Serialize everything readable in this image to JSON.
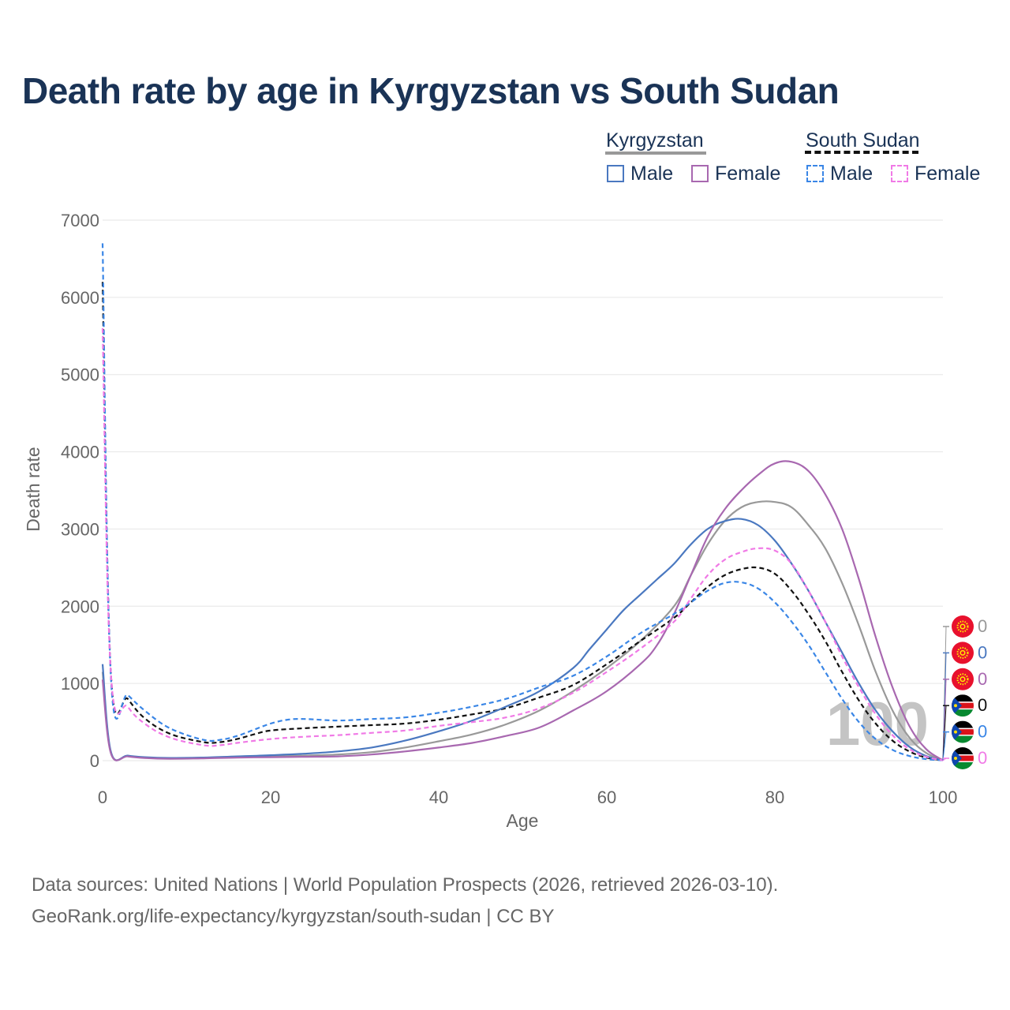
{
  "title": "Death rate by age in Kyrgyzstan vs South Sudan",
  "legend": {
    "kyrgyzstan": {
      "title": "Kyrgyzstan",
      "male": "Male",
      "female": "Female"
    },
    "south_sudan": {
      "title": "South Sudan",
      "male": "Male",
      "female": "Female"
    }
  },
  "footer": {
    "line1": "Data sources: United Nations | World Population Prospects (2026, retrieved 2026-03-10).",
    "line2": "GeoRank.org/life-expectancy/kyrgyzstan/south-sudan | CC BY"
  },
  "colors": {
    "kg_total": "#999999",
    "kg_male": "#4a78c0",
    "kg_female": "#a868b0",
    "ss_total": "#111111",
    "ss_male": "#3a86e6",
    "ss_female": "#f07ae6",
    "title": "#1a3356",
    "grid": "#e6e6e6",
    "text": "#666666"
  },
  "watermark": "100",
  "chart_data": {
    "type": "line",
    "title": "Death rate by age in Kyrgyzstan vs South Sudan",
    "xlabel": "Age",
    "ylabel": "Death rate",
    "xlim": [
      0,
      100
    ],
    "ylim": [
      0,
      7000
    ],
    "x_ticks": [
      0,
      20,
      40,
      60,
      80,
      100
    ],
    "y_ticks": [
      0,
      1000,
      2000,
      3000,
      4000,
      5000,
      6000,
      7000
    ],
    "grid": true,
    "legend_position": "top-right",
    "series": [
      {
        "id": "kg_total",
        "name": "Kyrgyzstan",
        "style": "solid",
        "end_value": "0",
        "points": [
          [
            0,
            1150
          ],
          [
            1,
            100
          ],
          [
            3,
            60
          ],
          [
            5,
            40
          ],
          [
            8,
            30
          ],
          [
            12,
            35
          ],
          [
            16,
            45
          ],
          [
            20,
            55
          ],
          [
            24,
            65
          ],
          [
            28,
            80
          ],
          [
            32,
            110
          ],
          [
            36,
            170
          ],
          [
            40,
            250
          ],
          [
            44,
            340
          ],
          [
            48,
            470
          ],
          [
            52,
            650
          ],
          [
            56,
            900
          ],
          [
            60,
            1200
          ],
          [
            64,
            1550
          ],
          [
            68,
            2000
          ],
          [
            70,
            2400
          ],
          [
            72,
            2800
          ],
          [
            74,
            3100
          ],
          [
            76,
            3280
          ],
          [
            78,
            3350
          ],
          [
            80,
            3350
          ],
          [
            82,
            3280
          ],
          [
            84,
            3050
          ],
          [
            86,
            2750
          ],
          [
            88,
            2300
          ],
          [
            90,
            1750
          ],
          [
            92,
            1150
          ],
          [
            94,
            650
          ],
          [
            96,
            300
          ],
          [
            98,
            100
          ],
          [
            100,
            5
          ]
        ]
      },
      {
        "id": "kg_male",
        "name": "Kyrgyzstan Male",
        "style": "solid",
        "end_value": "0",
        "points": [
          [
            0,
            1250
          ],
          [
            1,
            110
          ],
          [
            3,
            65
          ],
          [
            5,
            45
          ],
          [
            8,
            35
          ],
          [
            12,
            40
          ],
          [
            16,
            55
          ],
          [
            20,
            70
          ],
          [
            24,
            90
          ],
          [
            28,
            120
          ],
          [
            32,
            170
          ],
          [
            36,
            260
          ],
          [
            40,
            380
          ],
          [
            44,
            520
          ],
          [
            48,
            700
          ],
          [
            52,
            900
          ],
          [
            56,
            1200
          ],
          [
            58,
            1450
          ],
          [
            60,
            1700
          ],
          [
            62,
            1950
          ],
          [
            64,
            2150
          ],
          [
            66,
            2350
          ],
          [
            68,
            2550
          ],
          [
            70,
            2800
          ],
          [
            72,
            3000
          ],
          [
            74,
            3100
          ],
          [
            76,
            3130
          ],
          [
            78,
            3050
          ],
          [
            80,
            2850
          ],
          [
            82,
            2550
          ],
          [
            84,
            2200
          ],
          [
            86,
            1800
          ],
          [
            88,
            1400
          ],
          [
            90,
            1000
          ],
          [
            92,
            650
          ],
          [
            94,
            380
          ],
          [
            96,
            180
          ],
          [
            98,
            60
          ],
          [
            100,
            5
          ]
        ]
      },
      {
        "id": "kg_female",
        "name": "Kyrgyzstan Female",
        "style": "solid",
        "end_value": "0",
        "points": [
          [
            0,
            1050
          ],
          [
            1,
            90
          ],
          [
            3,
            55
          ],
          [
            5,
            35
          ],
          [
            8,
            25
          ],
          [
            12,
            30
          ],
          [
            16,
            40
          ],
          [
            20,
            45
          ],
          [
            24,
            50
          ],
          [
            28,
            55
          ],
          [
            32,
            80
          ],
          [
            36,
            120
          ],
          [
            40,
            170
          ],
          [
            44,
            230
          ],
          [
            48,
            320
          ],
          [
            52,
            430
          ],
          [
            56,
            650
          ],
          [
            60,
            900
          ],
          [
            64,
            1250
          ],
          [
            66,
            1500
          ],
          [
            68,
            1900
          ],
          [
            70,
            2400
          ],
          [
            72,
            2900
          ],
          [
            74,
            3250
          ],
          [
            76,
            3500
          ],
          [
            78,
            3700
          ],
          [
            80,
            3850
          ],
          [
            82,
            3870
          ],
          [
            84,
            3750
          ],
          [
            86,
            3450
          ],
          [
            88,
            3000
          ],
          [
            90,
            2350
          ],
          [
            92,
            1600
          ],
          [
            94,
            950
          ],
          [
            96,
            450
          ],
          [
            98,
            150
          ],
          [
            100,
            5
          ]
        ]
      },
      {
        "id": "ss_total",
        "name": "South Sudan",
        "style": "dashed",
        "end_value": "0",
        "points": [
          [
            0,
            6200
          ],
          [
            1,
            1100
          ],
          [
            3,
            800
          ],
          [
            5,
            550
          ],
          [
            8,
            350
          ],
          [
            12,
            240
          ],
          [
            14,
            240
          ],
          [
            16,
            280
          ],
          [
            18,
            340
          ],
          [
            20,
            390
          ],
          [
            24,
            420
          ],
          [
            28,
            440
          ],
          [
            32,
            460
          ],
          [
            36,
            480
          ],
          [
            40,
            530
          ],
          [
            44,
            600
          ],
          [
            48,
            680
          ],
          [
            52,
            820
          ],
          [
            56,
            980
          ],
          [
            60,
            1250
          ],
          [
            64,
            1550
          ],
          [
            68,
            1850
          ],
          [
            70,
            2050
          ],
          [
            72,
            2250
          ],
          [
            74,
            2400
          ],
          [
            76,
            2480
          ],
          [
            78,
            2500
          ],
          [
            80,
            2420
          ],
          [
            82,
            2200
          ],
          [
            84,
            1900
          ],
          [
            86,
            1550
          ],
          [
            88,
            1150
          ],
          [
            90,
            780
          ],
          [
            92,
            480
          ],
          [
            94,
            260
          ],
          [
            96,
            120
          ],
          [
            98,
            40
          ],
          [
            100,
            5
          ]
        ]
      },
      {
        "id": "ss_male",
        "name": "South Sudan Male",
        "style": "dashed",
        "end_value": "0",
        "points": [
          [
            0,
            6700
          ],
          [
            1,
            1050
          ],
          [
            3,
            850
          ],
          [
            5,
            650
          ],
          [
            8,
            420
          ],
          [
            12,
            270
          ],
          [
            14,
            270
          ],
          [
            16,
            320
          ],
          [
            18,
            400
          ],
          [
            20,
            480
          ],
          [
            22,
            530
          ],
          [
            24,
            540
          ],
          [
            28,
            520
          ],
          [
            32,
            540
          ],
          [
            36,
            560
          ],
          [
            40,
            620
          ],
          [
            44,
            700
          ],
          [
            48,
            800
          ],
          [
            52,
            950
          ],
          [
            56,
            1100
          ],
          [
            60,
            1350
          ],
          [
            64,
            1650
          ],
          [
            68,
            1900
          ],
          [
            70,
            2050
          ],
          [
            72,
            2200
          ],
          [
            74,
            2300
          ],
          [
            76,
            2310
          ],
          [
            78,
            2230
          ],
          [
            80,
            2050
          ],
          [
            82,
            1800
          ],
          [
            84,
            1500
          ],
          [
            86,
            1150
          ],
          [
            88,
            800
          ],
          [
            90,
            500
          ],
          [
            92,
            280
          ],
          [
            94,
            140
          ],
          [
            96,
            60
          ],
          [
            98,
            20
          ],
          [
            100,
            5
          ]
        ]
      },
      {
        "id": "ss_female",
        "name": "South Sudan Female",
        "style": "dashed",
        "end_value": "0",
        "points": [
          [
            0,
            5600
          ],
          [
            1,
            1100
          ],
          [
            3,
            700
          ],
          [
            5,
            480
          ],
          [
            8,
            300
          ],
          [
            12,
            200
          ],
          [
            14,
            200
          ],
          [
            16,
            230
          ],
          [
            20,
            280
          ],
          [
            24,
            310
          ],
          [
            28,
            330
          ],
          [
            32,
            360
          ],
          [
            36,
            390
          ],
          [
            40,
            450
          ],
          [
            44,
            500
          ],
          [
            48,
            560
          ],
          [
            52,
            680
          ],
          [
            56,
            880
          ],
          [
            60,
            1150
          ],
          [
            64,
            1450
          ],
          [
            68,
            1800
          ],
          [
            70,
            2100
          ],
          [
            72,
            2400
          ],
          [
            74,
            2600
          ],
          [
            76,
            2700
          ],
          [
            78,
            2750
          ],
          [
            80,
            2720
          ],
          [
            82,
            2550
          ],
          [
            84,
            2200
          ],
          [
            86,
            1800
          ],
          [
            88,
            1350
          ],
          [
            90,
            950
          ],
          [
            92,
            600
          ],
          [
            94,
            330
          ],
          [
            96,
            150
          ],
          [
            98,
            50
          ],
          [
            100,
            5
          ]
        ]
      }
    ]
  }
}
